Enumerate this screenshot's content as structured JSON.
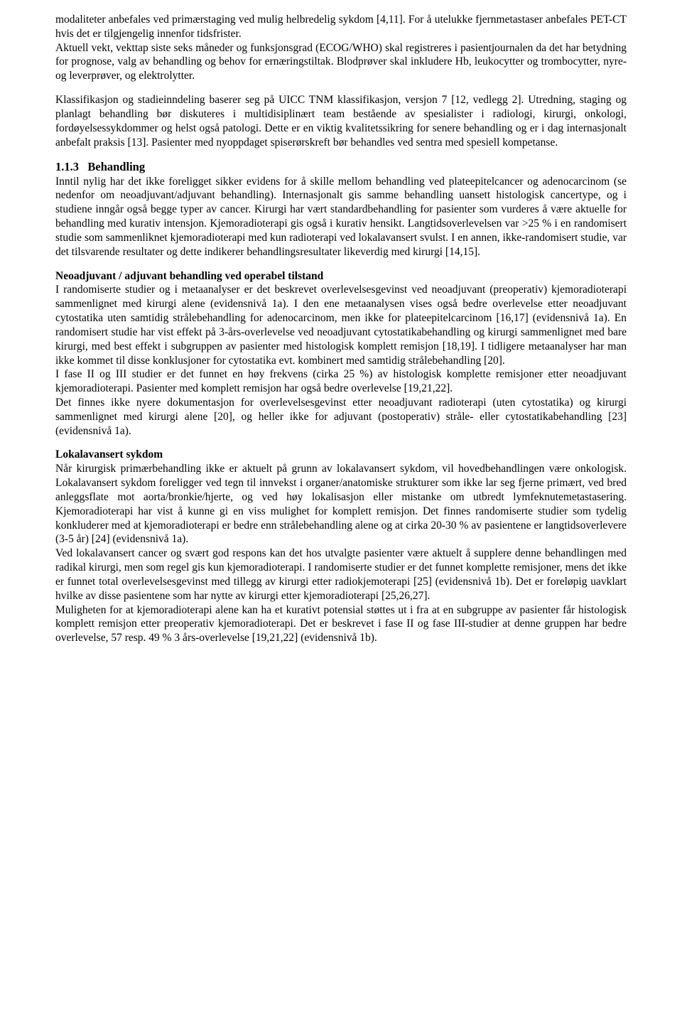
{
  "para1": "modaliteter anbefales ved primærstaging ved mulig helbredelig sykdom [4,11]. For å utelukke fjernmetastaser anbefales PET-CT hvis det er tilgjengelig innenfor tidsfrister.",
  "para2": "Aktuell vekt, vekttap siste seks måneder og funksjonsgrad (ECOG/WHO) skal registreres i pasientjournalen da det har betydning for prognose, valg av behandling og behov for ernæringstiltak. Blodprøver skal inkludere Hb, leukocytter og trombocytter, nyre- og leverprøver, og elektrolytter.",
  "para3": "Klassifikasjon og stadieinndeling baserer seg på UICC TNM klassifikasjon, versjon 7 [12, vedlegg 2]. Utredning, staging og planlagt behandling bør diskuteres i multidisiplinært team bestående av spesialister i radiologi, kirurgi, onkologi, fordøyelsessykdommer og helst også patologi. Dette er en viktig kvalitetssikring for senere behandling og er i dag internasjonalt anbefalt praksis [13]. Pasienter med nyoppdaget spiserørskreft bør behandles ved sentra med spesiell kompetanse.",
  "section113_number": "1.1.3",
  "section113_title": "Behandling",
  "para4": "Inntil nylig har det ikke foreligget sikker evidens for å skille mellom behandling ved plateepitelcancer og adenocarcinom (se nedenfor om neoadjuvant/adjuvant behandling). Internasjonalt gis samme behandling uansett histologisk cancertype, og i studiene inngår også begge typer av cancer. Kirurgi har vært standardbehandling for pasienter som vurderes å være aktuelle for behandling med kurativ intensjon. Kjemoradioterapi gis også i kurativ hensikt. Langtidsoverlevelsen var >25 % i en randomisert studie som sammenliknet kjemoradioterapi med kun radioterapi ved lokalavansert svulst. I en annen, ikke-randomisert studie, var det tilsvarende resultater og dette indikerer behandlingsresultater likeverdig med kirurgi [14,15].",
  "sub_neo_title": "Neoadjuvant / adjuvant behandling ved operabel tilstand",
  "para5": "I randomiserte studier og i metaanalyser er det beskrevet overlevelsesgevinst ved neoadjuvant (preoperativ) kjemoradioterapi sammenlignet med kirurgi alene (evidensnivå 1a). I den ene metaanalysen vises også bedre overlevelse etter neoadjuvant cytostatika uten samtidig strålebehandling for adenocarcinom, men ikke for plateepitelcarcinom [16,17] (evidensnivå 1a). En randomisert studie har vist effekt på 3-års-overlevelse ved neoadjuvant cytostatikabehandling og kirurgi sammenlignet med bare kirurgi, med best effekt i subgruppen av pasienter med histologisk komplett remisjon [18,19]. I tidligere metaanalyser har man ikke kommet til disse konklusjoner for cytostatika evt. kombinert med samtidig strålebehandling [20].",
  "para6": "I fase II og III studier er det funnet en høy frekvens (cirka 25 %) av histologisk komplette remisjoner etter neoadjuvant kjemoradioterapi. Pasienter med komplett remisjon har også bedre overlevelse [19,21,22].",
  "para7": "Det finnes ikke nyere dokumentasjon for overlevelsesgevinst etter neoadjuvant radioterapi (uten cytostatika) og kirurgi sammenlignet med kirurgi alene [20], og heller ikke for adjuvant (postoperativ) stråle- eller cytostatikabehandling [23] (evidensnivå 1a).",
  "sub_lokal_title": "Lokalavansert sykdom",
  "para8": "Når kirurgisk primærbehandling ikke er aktuelt på grunn av lokalavansert sykdom, vil hovedbehandlingen være onkologisk. Lokalavansert sykdom foreligger ved tegn til innvekst i organer/anatomiske strukturer som ikke lar seg fjerne primært, ved bred anleggsflate mot aorta/bronkie/hjerte, og ved høy lokalisasjon eller mistanke om utbredt lymfeknutemetastasering. Kjemoradioterapi har vist å kunne gi en viss mulighet for komplett remisjon. Det finnes randomiserte studier som tydelig konkluderer med at kjemoradioterapi er bedre enn strålebehandling alene og at cirka 20-30 % av pasientene er langtidsoverlevere (3-5 år) [24] (evidensnivå 1a).",
  "para9": "Ved lokalavansert cancer og svært god respons kan det hos utvalgte pasienter være aktuelt å supplere denne behandlingen med radikal kirurgi, men som regel gis kun kjemoradioterapi. I randomiserte studier er det funnet komplette remisjoner, mens det ikke er funnet total overlevelsesgevinst med tillegg av kirurgi etter radiokjemoterapi [25] (evidensnivå 1b). Det er foreløpig uavklart hvilke av disse pasientene som har nytte av kirurgi etter kjemoradioterapi [25,26,27].",
  "para10": "Muligheten for at kjemoradioterapi alene kan ha et kurativt potensial støttes ut i fra at en subgruppe av pasienter får histologisk komplett remisjon etter preoperativ kjemoradioterapi. Det er beskrevet i fase II og fase III-studier at denne gruppen har bedre overlevelse, 57 resp. 49 % 3 års-overlevelse [19,21,22] (evidensnivå 1b)."
}
